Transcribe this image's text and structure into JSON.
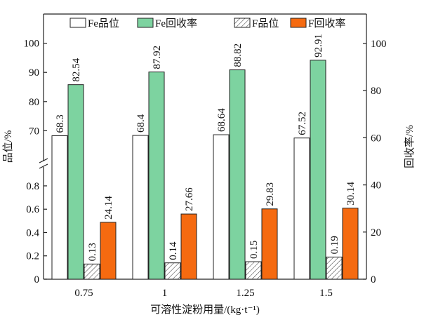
{
  "chart_data": {
    "type": "bar",
    "x_label": "可溶性淀粉用量/(kg·t⁻¹)",
    "y_label": "品位/%",
    "y2_label": "回收率/%",
    "categories": [
      "0.75",
      "1",
      "1.25",
      "1.5"
    ],
    "ylim": [
      0,
      0.95
    ],
    "yticks": [
      0,
      0.2,
      0.4,
      0.6,
      0.8
    ],
    "ylim_upper": [
      60,
      110
    ],
    "yticks_upper": [
      70,
      80,
      90,
      100
    ],
    "y2lim": [
      0,
      112.5
    ],
    "y2ticks": [
      0,
      20,
      40,
      60,
      80,
      100
    ],
    "legend": "top",
    "series": [
      {
        "name": "Fe品位",
        "color": "#ffffff",
        "axis": "y_upper",
        "values": [
          68.3,
          68.4,
          68.64,
          67.52
        ]
      },
      {
        "name": "Fe回收率",
        "color": "#7dd3a0",
        "axis": "y2",
        "values": [
          82.54,
          87.92,
          88.82,
          92.91
        ]
      },
      {
        "name": "F品位",
        "color": "#ffffff",
        "hatch": true,
        "axis": "y",
        "values": [
          0.13,
          0.14,
          0.15,
          0.19
        ]
      },
      {
        "name": "F回收率",
        "color": "#f56a10",
        "axis": "y2",
        "values": [
          24.14,
          27.66,
          29.83,
          30.14
        ]
      }
    ]
  }
}
